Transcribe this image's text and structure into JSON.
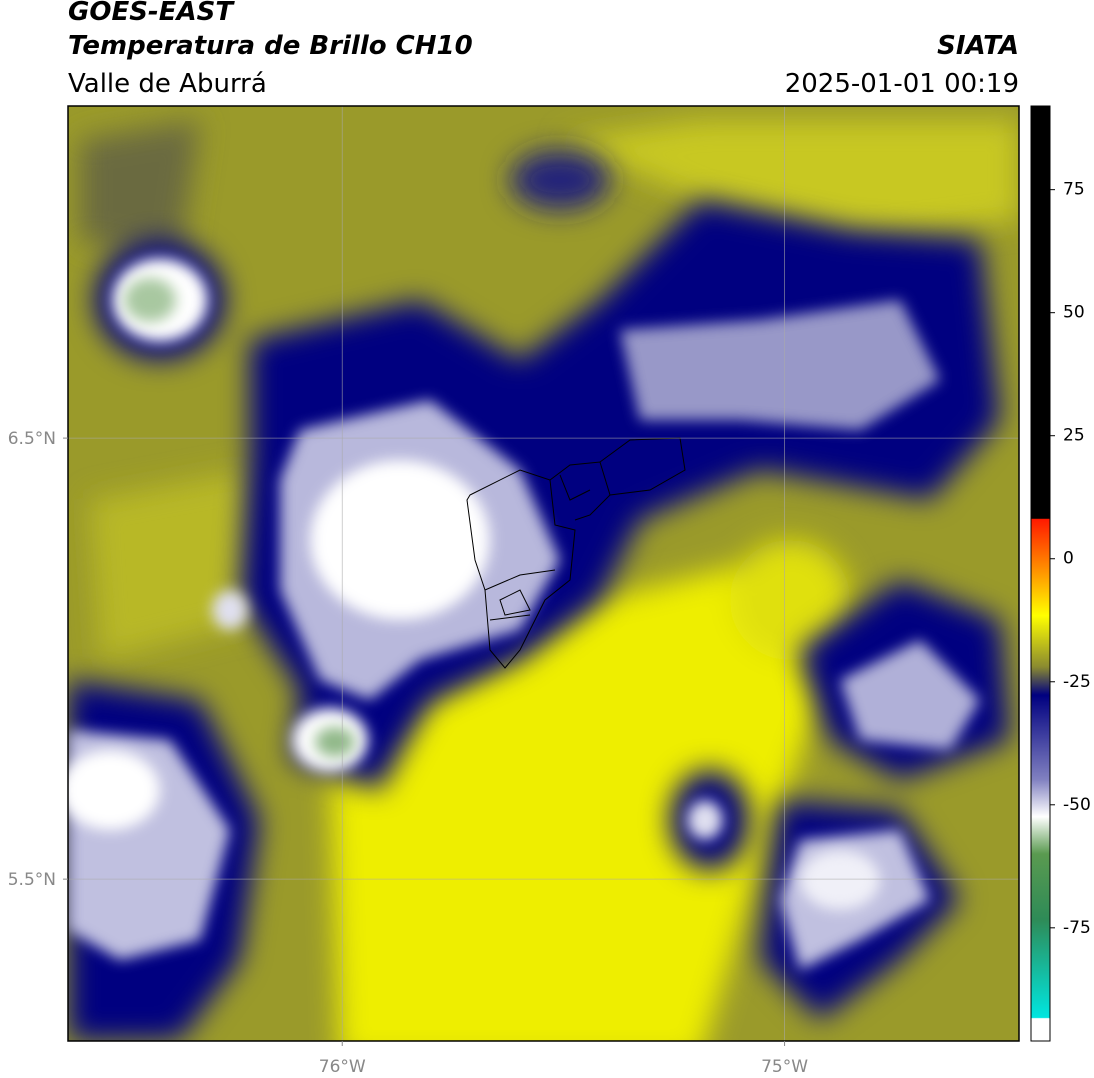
{
  "header": {
    "satellite": "GOES-EAST",
    "product": "Temperatura de Brillo CH10",
    "region": "Valle de Aburrá",
    "org": "SIATA",
    "datetime": "2025-01-01 00:19"
  },
  "map": {
    "xlim": [
      -76.62,
      -74.47
    ],
    "ylim": [
      5.133,
      7.253
    ],
    "xticks": [
      {
        "value": -76,
        "label": "76°W"
      },
      {
        "value": -75,
        "label": "75°W"
      }
    ],
    "yticks": [
      {
        "value": 6.5,
        "label": "6.5°N"
      },
      {
        "value": 5.5,
        "label": "5.5°N"
      }
    ],
    "grid": true
  },
  "colorbar": {
    "lim": [
      -98,
      92
    ],
    "ticks": [
      75,
      50,
      25,
      0,
      -25,
      -50,
      -75
    ]
  }
}
